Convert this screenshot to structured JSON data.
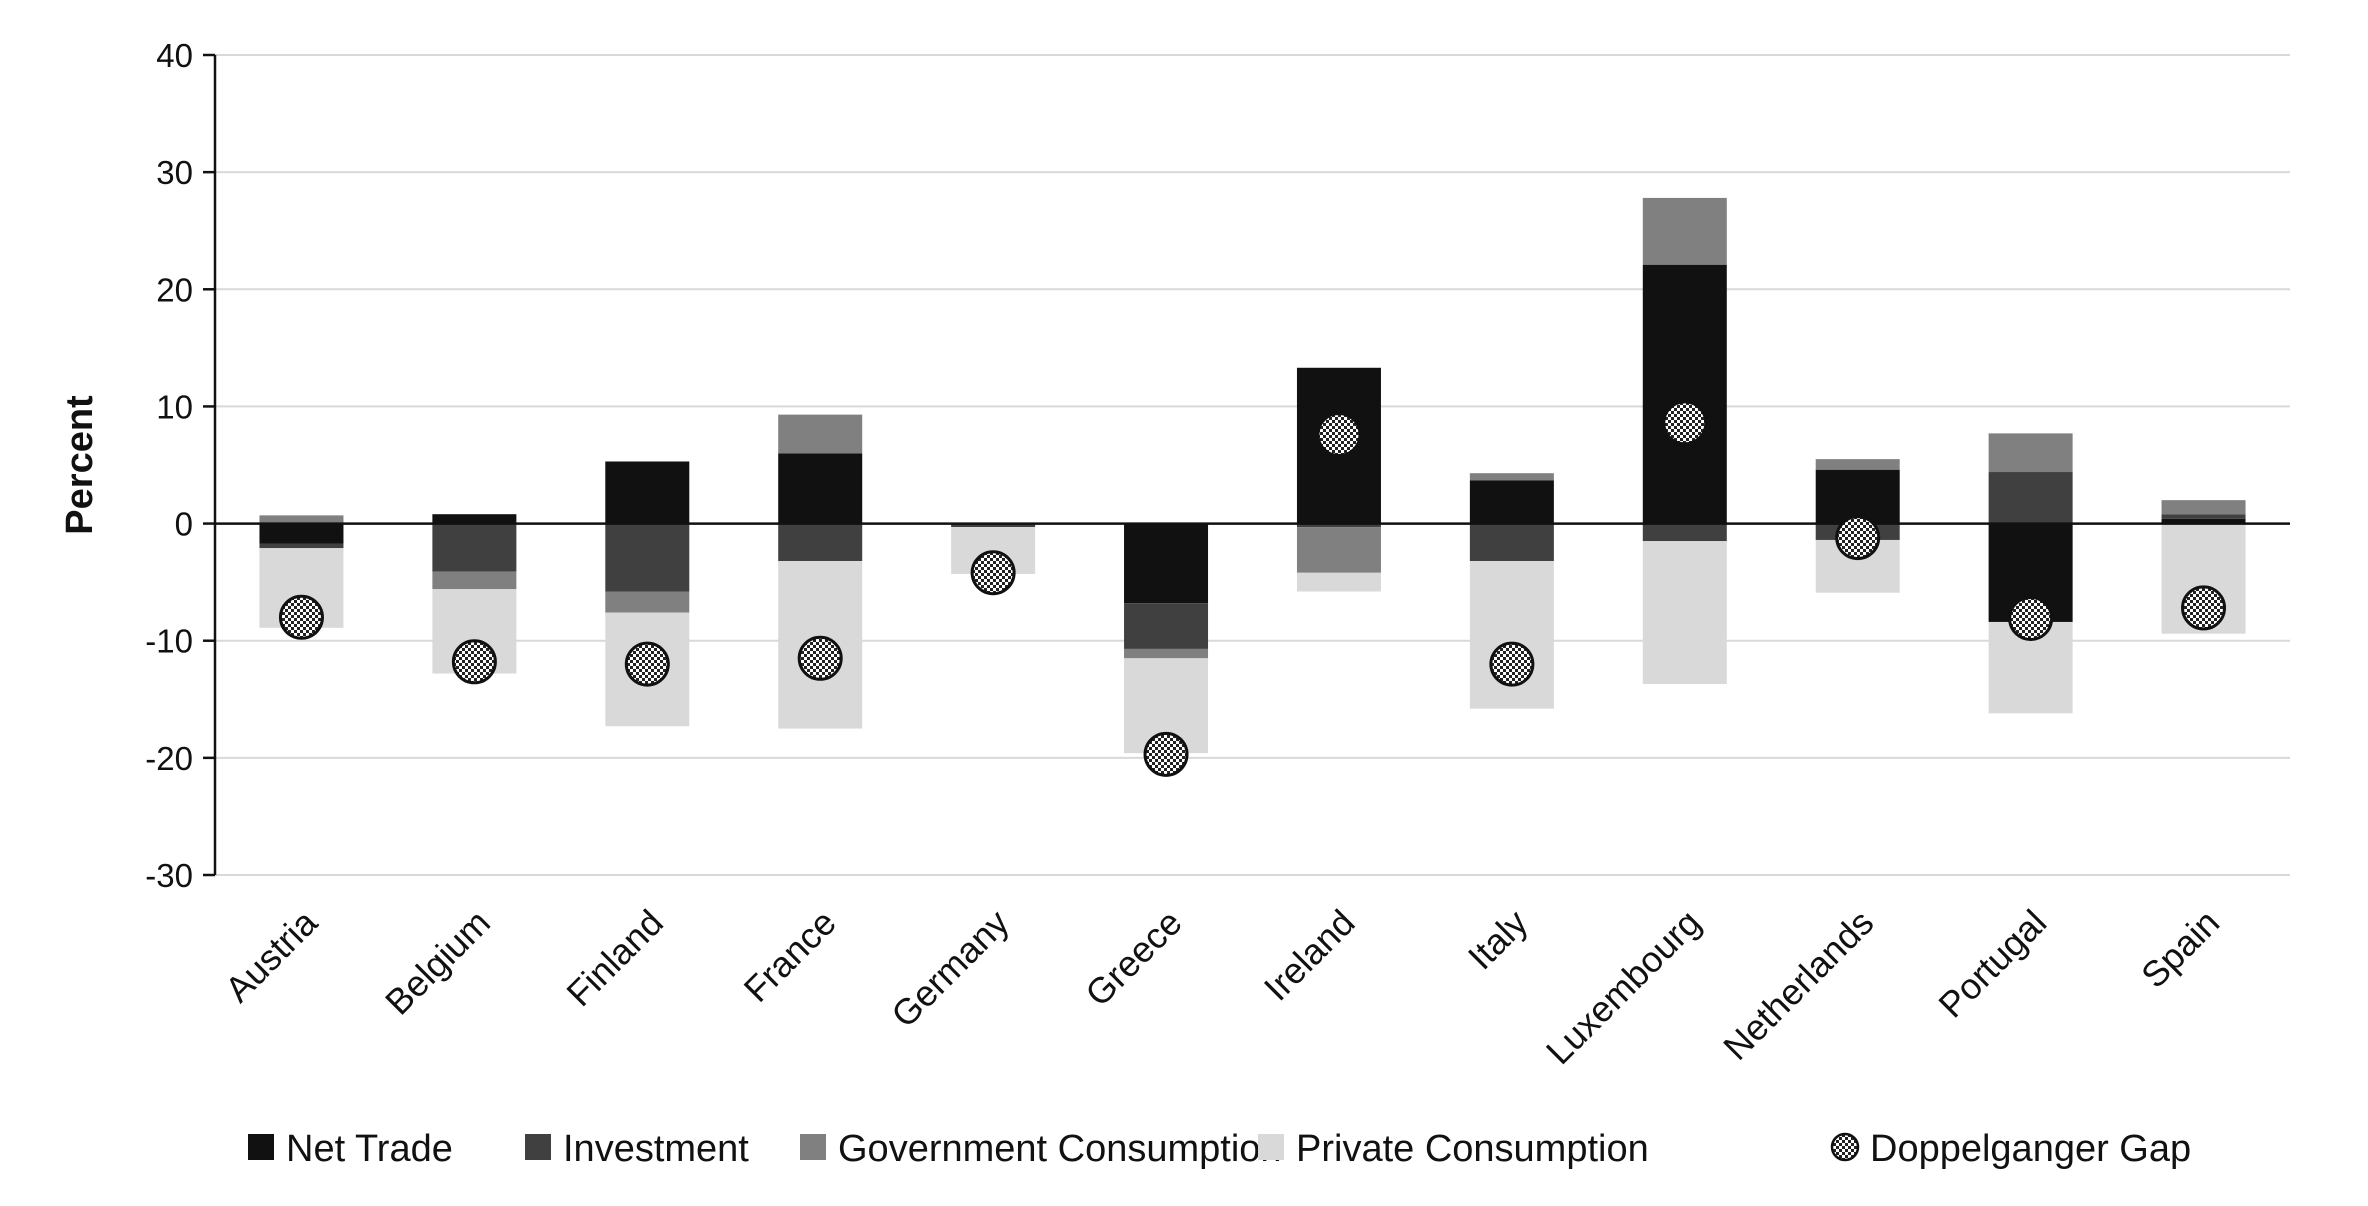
{
  "chart_data": {
    "type": "bar",
    "stacked": true,
    "title": "",
    "xlabel": "",
    "ylabel": "Percent",
    "ylim": [
      -30,
      40
    ],
    "yticks": [
      40,
      30,
      20,
      10,
      0,
      -10,
      -20,
      -30
    ],
    "grid": true,
    "legend_position": "bottom",
    "categories": [
      "Austria",
      "Belgium",
      "Finland",
      "France",
      "Germany",
      "Greece",
      "Ireland",
      "Italy",
      "Luxembourg",
      "Netherlands",
      "Portugal",
      "Spain"
    ],
    "series": [
      {
        "name": "Net Trade",
        "color": "#111111",
        "values": [
          -1.7,
          0.8,
          5.3,
          6.0,
          0.0,
          -6.8,
          13.3,
          3.7,
          22.1,
          4.6,
          -8.4,
          0.4
        ]
      },
      {
        "name": "Investment",
        "color": "#404040",
        "values": [
          -0.4,
          -4.1,
          -5.8,
          -3.2,
          -0.3,
          -3.9,
          -0.3,
          -3.2,
          -1.5,
          -1.4,
          4.4,
          0.4
        ]
      },
      {
        "name": "Government Consumption",
        "color": "#808080",
        "values": [
          0.7,
          -1.5,
          -1.8,
          3.3,
          0.0,
          -0.8,
          -3.9,
          0.6,
          5.7,
          0.9,
          3.3,
          1.2
        ]
      },
      {
        "name": "Private Consumption",
        "color": "#d9d9d9",
        "values": [
          -6.8,
          -7.2,
          -9.7,
          -14.3,
          -4.0,
          -8.1,
          -1.6,
          -12.6,
          -12.2,
          -4.5,
          -7.8,
          -9.4
        ]
      }
    ],
    "doppelganger_gap": {
      "name": "Doppelganger Gap",
      "values": [
        -8.0,
        -11.8,
        -12.0,
        -11.5,
        -4.2,
        -19.7,
        7.6,
        -12.0,
        8.6,
        -1.2,
        -8.1,
        -7.2
      ]
    }
  }
}
